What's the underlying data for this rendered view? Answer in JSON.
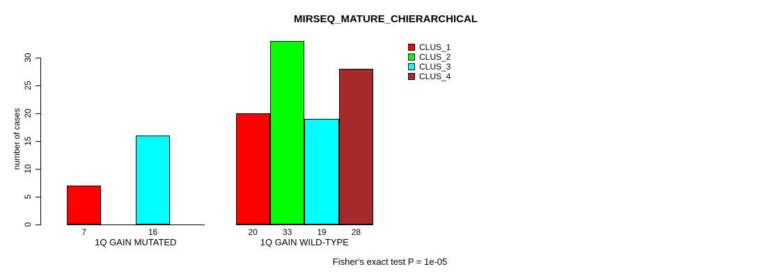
{
  "chart_data": {
    "type": "bar",
    "title": "MIRSEQ_MATURE_CHIERARCHICAL",
    "ylabel": "number of cases",
    "xlabel": "",
    "categories": [
      "1Q GAIN MUTATED",
      "1Q GAIN WILD-TYPE"
    ],
    "series": [
      {
        "name": "CLUS_1",
        "color": "#ff0000",
        "values": [
          7,
          20
        ]
      },
      {
        "name": "CLUS_2",
        "color": "#00ff00",
        "values": [
          0,
          33
        ]
      },
      {
        "name": "CLUS_3",
        "color": "#00ffff",
        "values": [
          16,
          19
        ]
      },
      {
        "name": "CLUS_4",
        "color": "#a52a2a",
        "values": [
          0,
          28
        ]
      }
    ],
    "yticks": [
      0,
      5,
      10,
      15,
      20,
      25,
      30
    ],
    "ylim": [
      0,
      33
    ],
    "grid": false,
    "legend_position": "top-right",
    "bar_value_labels": true,
    "zero_value_bars_hidden": true,
    "annotation": "Fisher's exact test P = 1e-05"
  }
}
